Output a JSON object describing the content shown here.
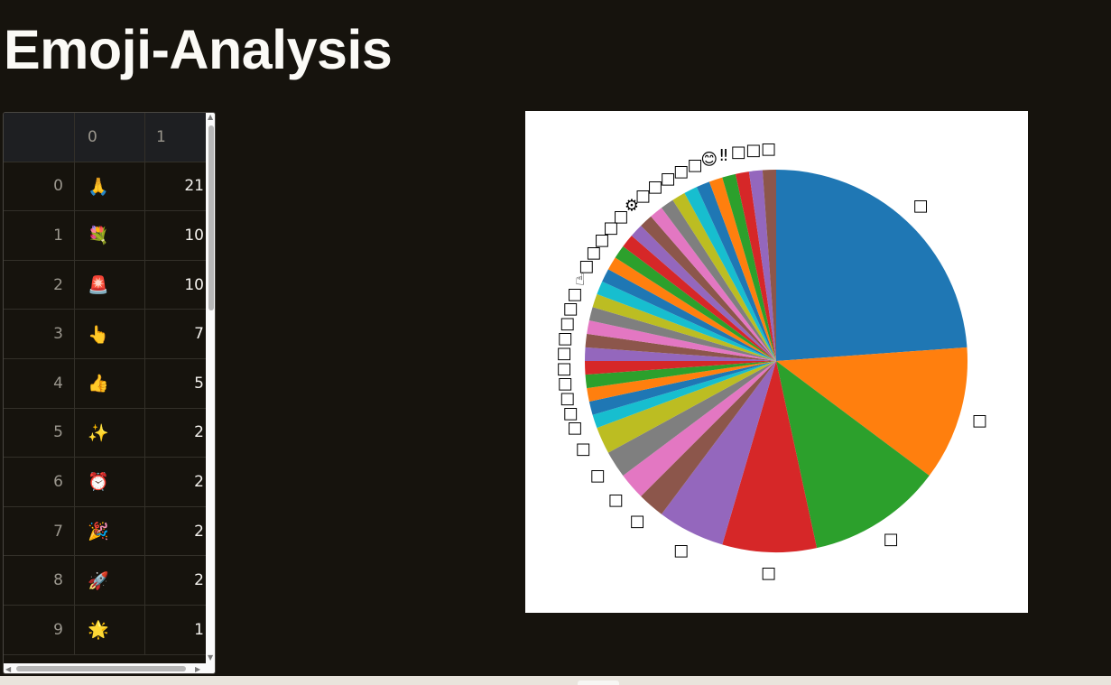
{
  "page": {
    "title": "Emoji-Analysis"
  },
  "table": {
    "columns": [
      "",
      "0",
      "1"
    ],
    "rows": [
      {
        "index": "0",
        "emoji": "🙏",
        "count": "21"
      },
      {
        "index": "1",
        "emoji": "💐",
        "count": "10"
      },
      {
        "index": "2",
        "emoji": "🚨",
        "count": "10"
      },
      {
        "index": "3",
        "emoji": "👆",
        "count": "7"
      },
      {
        "index": "4",
        "emoji": "👍",
        "count": "5"
      },
      {
        "index": "5",
        "emoji": "✨",
        "count": "2"
      },
      {
        "index": "6",
        "emoji": "⏰",
        "count": "2"
      },
      {
        "index": "7",
        "emoji": "🎉",
        "count": "2"
      },
      {
        "index": "8",
        "emoji": "🚀",
        "count": "2"
      },
      {
        "index": "9",
        "emoji": "🌟",
        "count": "1"
      }
    ]
  },
  "chart_data": {
    "type": "pie",
    "title": "",
    "start_angle": 90,
    "counterclock": false,
    "labels": [
      "🙏",
      "💐",
      "🚨",
      "👆",
      "👍",
      "✨",
      "⏰",
      "🎉",
      "🚀",
      "🌟",
      "💪",
      "🔥",
      "🎁",
      "🙌",
      "💯",
      "👏",
      "🎊",
      "💥",
      "🌸",
      "⭐",
      "☝",
      "🍀",
      "🎶",
      "💖",
      "🌈",
      "⚙",
      "💫",
      "🎯",
      "🌺",
      "🥳",
      "🏆",
      "😊",
      "‼",
      "💡",
      "🌼",
      "🤝"
    ],
    "display_labels": [
      "□",
      "□",
      "□",
      "□",
      "□",
      "□",
      "□",
      "□",
      "□",
      "□",
      "□",
      "□",
      "□",
      "□",
      "□",
      "□",
      "□",
      "□",
      "□",
      "☝",
      "□",
      "□",
      "□",
      "□",
      "□",
      "⚙",
      "□",
      "□",
      "□",
      "□",
      "□",
      "😊",
      "‼",
      "□",
      "□",
      "□"
    ],
    "values": [
      21,
      10,
      10,
      7,
      5,
      2,
      2,
      2,
      2,
      1,
      1,
      1,
      1,
      1,
      1,
      1,
      1,
      1,
      1,
      1,
      1,
      1,
      1,
      1,
      1,
      1,
      1,
      1,
      1,
      1,
      1,
      1,
      1,
      1,
      1,
      1
    ],
    "colors": [
      "#1f77b4",
      "#ff7f0e",
      "#2ca02c",
      "#d62728",
      "#9467bd",
      "#8c564b",
      "#e377c2",
      "#7f7f7f",
      "#bcbd22",
      "#17becf"
    ]
  }
}
